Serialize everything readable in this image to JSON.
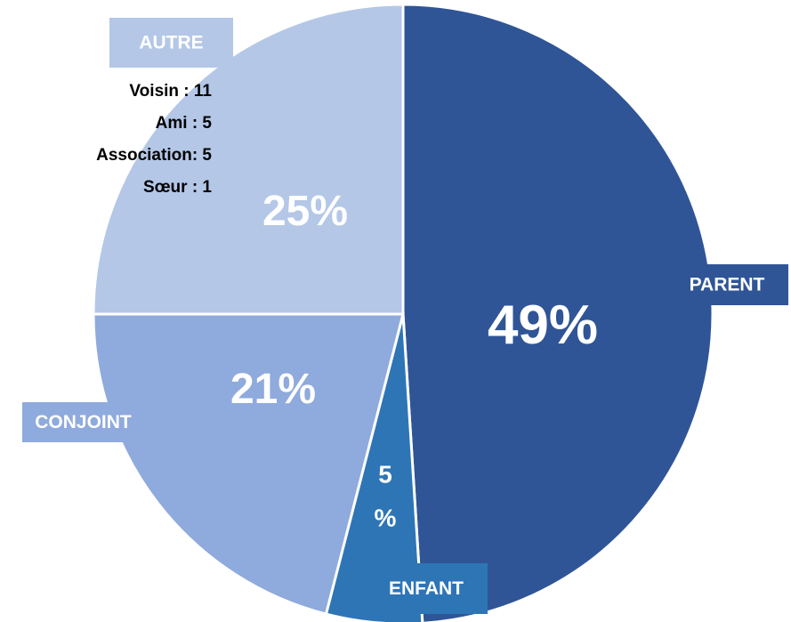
{
  "chart_data": {
    "type": "pie",
    "categories": [
      "PARENT",
      "ENFANT",
      "CONJOINT",
      "AUTRE"
    ],
    "values": [
      49,
      5,
      21,
      25
    ],
    "value_labels": [
      "49%",
      "5 %",
      "21%",
      "25%"
    ],
    "colors": [
      "#2f5597",
      "#2e75b6",
      "#8faadc",
      "#b4c7e7"
    ],
    "annotations": [
      "Voisin : 11",
      "Ami : 5",
      "Association: 5",
      "Sœur : 1"
    ]
  }
}
